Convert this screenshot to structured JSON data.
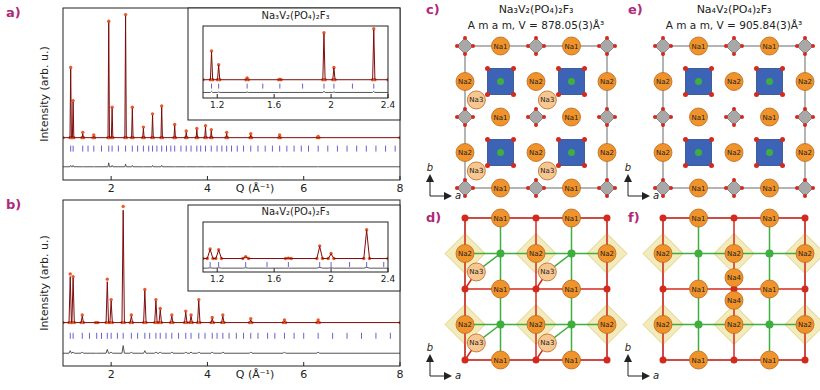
{
  "chart_data": [
    {
      "type": "line",
      "title": "a)",
      "x_label": "Q (Å⁻¹)",
      "y_label": "Intensity (arb. u.)",
      "xlim": [
        1,
        8
      ],
      "ylim": [
        -30,
        100
      ],
      "xticks": [
        2,
        4,
        6,
        8
      ],
      "tick_labels": "x",
      "x": [
        1.0,
        1.145,
        1.16,
        1.175,
        1.195,
        1.21,
        1.225,
        1.395,
        1.41,
        1.425,
        1.625,
        1.64,
        1.655,
        1.935,
        1.95,
        1.965,
        2.005,
        2.02,
        2.035,
        2.285,
        2.3,
        2.315,
        2.425,
        2.44,
        2.455,
        2.655,
        2.67,
        2.685,
        2.845,
        2.86,
        2.875,
        3.035,
        3.05,
        3.065,
        3.305,
        3.32,
        3.335,
        3.545,
        3.56,
        3.575,
        3.765,
        3.78,
        3.795,
        3.945,
        3.96,
        3.975,
        4.065,
        4.08,
        4.095,
        4.385,
        4.4,
        4.415,
        4.885,
        4.9,
        4.915,
        5.485,
        5.5,
        5.515,
        6.285,
        6.3,
        6.315,
        8.0
      ],
      "series": [
        {
          "type": "scatter",
          "marker": "circle",
          "color": "#ea5b2b",
          "values": [
            2,
            2,
            55,
            2,
            2,
            30,
            2,
            2,
            6,
            2,
            2,
            4,
            2,
            2,
            90,
            2,
            2,
            25,
            2,
            2,
            95,
            2,
            2,
            25,
            2,
            2,
            10,
            2,
            2,
            20,
            2,
            2,
            26,
            2,
            2,
            12,
            2,
            2,
            7,
            2,
            2,
            9,
            2,
            2,
            11,
            2,
            2,
            8,
            2,
            2,
            6,
            2,
            2,
            5,
            2,
            2,
            4,
            2,
            2,
            3,
            2,
            2
          ]
        },
        {
          "type": "line",
          "color": "#7d0b0b",
          "values": [
            2,
            2,
            54,
            2,
            2,
            29,
            2,
            2,
            5,
            2,
            2,
            3,
            2,
            2,
            89,
            2,
            2,
            24,
            2,
            2,
            94,
            2,
            2,
            24,
            2,
            2,
            9,
            2,
            2,
            19,
            2,
            2,
            25,
            2,
            2,
            11,
            2,
            2,
            6,
            2,
            2,
            8,
            2,
            2,
            10,
            2,
            2,
            7,
            2,
            2,
            5,
            2,
            2,
            4,
            2,
            2,
            3,
            2,
            2,
            2,
            2,
            2
          ]
        },
        {
          "type": "line",
          "color": "#555555",
          "values": [
            -20,
            -20,
            -19,
            -20,
            -20,
            -19,
            -20,
            -20,
            -20,
            -20,
            -20,
            -20,
            -20,
            -20,
            -17,
            -20,
            -20,
            -19,
            -20,
            -20,
            -18,
            -20,
            -20,
            -19,
            -20,
            -20,
            -20,
            -20,
            -20,
            -19,
            -20,
            -20,
            -19,
            -20,
            -20,
            -20,
            -20,
            -20,
            -20,
            -20,
            -20,
            -20,
            -20,
            -20,
            -20,
            -20,
            -20,
            -20,
            -20,
            -20,
            -20,
            -20,
            -20,
            -20,
            -20,
            -20,
            -20,
            -20,
            -20,
            -20,
            -20,
            -20
          ]
        },
        {
          "type": "ticks",
          "color": "#6a60cc",
          "x": [
            1.16,
            1.21,
            1.41,
            1.52,
            1.64,
            1.8,
            1.95,
            2.02,
            2.15,
            2.3,
            2.44,
            2.55,
            2.67,
            2.78,
            2.86,
            2.95,
            3.05,
            3.15,
            3.24,
            3.32,
            3.45,
            3.56,
            3.66,
            3.78,
            3.86,
            3.96,
            4.08,
            4.2,
            4.3,
            4.4,
            4.5,
            4.62,
            4.75,
            4.9,
            5.05,
            5.2,
            5.35,
            5.5,
            5.65,
            5.8,
            5.95,
            6.1,
            6.3,
            6.5,
            6.7,
            6.9,
            7.1,
            7.3,
            7.5,
            7.7,
            7.9
          ]
        }
      ]
    },
    {
      "type": "line",
      "title": "Na₃V₂(PO₄)₂F₃",
      "xlim": [
        1.1,
        2.4
      ],
      "ylim": [
        -30,
        100
      ],
      "xticks": [
        1.2,
        1.6,
        2,
        2.4
      ],
      "tick_labels": "x",
      "x": [
        1.1,
        1.152,
        1.16,
        1.168,
        1.202,
        1.21,
        1.218,
        1.402,
        1.41,
        1.418,
        1.632,
        1.64,
        1.648,
        1.942,
        1.95,
        1.958,
        2.012,
        2.02,
        2.028,
        2.292,
        2.3,
        2.308,
        2.4
      ],
      "series": [
        {
          "type": "scatter",
          "marker": "circle",
          "color": "#ea5b2b",
          "values": [
            3,
            3,
            55,
            3,
            3,
            30,
            3,
            3,
            6,
            3,
            3,
            4,
            3,
            3,
            88,
            3,
            3,
            25,
            3,
            3,
            95,
            3,
            3
          ]
        },
        {
          "type": "line",
          "color": "#7d0b0b",
          "values": [
            3,
            3,
            53,
            3,
            3,
            29,
            3,
            3,
            5,
            3,
            3,
            3,
            3,
            3,
            86,
            3,
            3,
            24,
            3,
            3,
            93,
            3,
            3
          ]
        },
        {
          "type": "line",
          "color": "#555555",
          "values": [
            -20,
            -20,
            -18,
            -20,
            -20,
            -19,
            -20,
            -20,
            -19,
            -20,
            -20,
            -20,
            -20,
            -20,
            -18,
            -20,
            -20,
            -19,
            -20,
            -20,
            -18,
            -20,
            -20
          ]
        },
        {
          "type": "ticks",
          "color": "#6a60cc",
          "x": [
            1.16,
            1.21,
            1.41,
            1.52,
            1.64,
            1.8,
            1.95,
            2.02,
            2.15,
            2.3
          ]
        }
      ]
    },
    {
      "type": "line",
      "title": "b)",
      "x_label": "Q (Å⁻¹)",
      "y_label": "Intensity (arb. u.)",
      "xlim": [
        1,
        8
      ],
      "ylim": [
        -30,
        100
      ],
      "xticks": [
        2,
        4,
        6,
        8
      ],
      "tick_labels": "x",
      "x": [
        1.0,
        1.125,
        1.15,
        1.175,
        1.185,
        1.21,
        1.235,
        1.375,
        1.4,
        1.425,
        1.675,
        1.7,
        1.725,
        1.895,
        1.92,
        1.945,
        1.975,
        2.0,
        2.025,
        2.225,
        2.25,
        2.275,
        2.395,
        2.42,
        2.445,
        2.675,
        2.7,
        2.725,
        2.905,
        2.93,
        2.955,
        2.995,
        3.02,
        3.045,
        3.235,
        3.26,
        3.285,
        3.525,
        3.55,
        3.575,
        3.635,
        3.66,
        3.685,
        3.795,
        3.82,
        3.845,
        4.075,
        4.1,
        4.125,
        4.295,
        4.32,
        4.345,
        4.875,
        4.9,
        4.925,
        5.575,
        5.6,
        5.625,
        6.275,
        6.3,
        6.325,
        8.0
      ],
      "series": [
        {
          "type": "scatter",
          "marker": "circle",
          "color": "#ea5b2b",
          "values": [
            4,
            4,
            42,
            4,
            4,
            40,
            4,
            4,
            10,
            4,
            4,
            4,
            4,
            4,
            38,
            4,
            4,
            22,
            4,
            4,
            95,
            4,
            4,
            10,
            4,
            4,
            30,
            4,
            4,
            22,
            4,
            4,
            15,
            4,
            4,
            10,
            4,
            4,
            13,
            4,
            4,
            10,
            4,
            4,
            22,
            4,
            4,
            8,
            4,
            4,
            10,
            4,
            4,
            7,
            4,
            4,
            6,
            4,
            4,
            6,
            4,
            4
          ]
        },
        {
          "type": "line",
          "color": "#7d0b0b",
          "values": [
            4,
            4,
            40,
            4,
            4,
            39,
            4,
            4,
            9,
            4,
            4,
            4,
            4,
            4,
            36,
            4,
            4,
            21,
            4,
            4,
            92,
            4,
            4,
            9,
            4,
            4,
            29,
            4,
            4,
            21,
            4,
            4,
            14,
            4,
            4,
            9,
            4,
            4,
            12,
            4,
            4,
            9,
            4,
            4,
            21,
            4,
            4,
            7,
            4,
            4,
            9,
            4,
            4,
            6,
            4,
            4,
            5,
            4,
            4,
            5,
            4,
            4
          ]
        },
        {
          "type": "line",
          "color": "#555555",
          "values": [
            -20,
            -20,
            -18,
            -20,
            -20,
            -19,
            -20,
            -20,
            -19,
            -20,
            -20,
            -20,
            -20,
            -20,
            -17,
            -20,
            -20,
            -19,
            -20,
            -20,
            -14,
            -20,
            -20,
            -19,
            -20,
            -20,
            -18,
            -20,
            -20,
            -19,
            -20,
            -20,
            -19,
            -20,
            -20,
            -19,
            -20,
            -20,
            -19,
            -20,
            -20,
            -19,
            -20,
            -20,
            -19,
            -20,
            -20,
            -19,
            -20,
            -20,
            -19,
            -20,
            -20,
            -19,
            -20,
            -20,
            -19,
            -20,
            -20,
            -19,
            -20,
            -20
          ]
        },
        {
          "type": "ticks",
          "color": "#6a60cc",
          "x": [
            1.15,
            1.21,
            1.4,
            1.55,
            1.7,
            1.8,
            1.92,
            2.0,
            2.13,
            2.25,
            2.42,
            2.55,
            2.7,
            2.8,
            2.93,
            3.02,
            3.14,
            3.26,
            3.4,
            3.55,
            3.66,
            3.82,
            3.95,
            4.1,
            4.2,
            4.32,
            4.45,
            4.6,
            4.75,
            4.9,
            5.05,
            5.25,
            5.4,
            5.6,
            5.8,
            6.0,
            6.3,
            6.6,
            6.9,
            7.2,
            7.5,
            7.8
          ]
        }
      ]
    },
    {
      "type": "line",
      "title": "Na₄V₂(PO₄)₂F₃",
      "xlim": [
        1.1,
        2.4
      ],
      "ylim": [
        -30,
        100
      ],
      "xticks": [
        1.2,
        1.6,
        2,
        2.4
      ],
      "tick_labels": "x",
      "x": [
        1.1,
        1.13,
        1.15,
        1.17,
        1.19,
        1.21,
        1.23,
        1.38,
        1.4,
        1.42,
        1.68,
        1.7,
        1.72,
        1.9,
        1.92,
        1.94,
        1.98,
        2.0,
        2.02,
        2.23,
        2.25,
        2.27,
        2.4
      ],
      "series": [
        {
          "type": "scatter",
          "marker": "circle",
          "color": "#ea5b2b",
          "values": [
            5,
            5,
            30,
            5,
            5,
            28,
            5,
            5,
            10,
            5,
            5,
            6,
            5,
            5,
            38,
            5,
            5,
            18,
            5,
            5,
            80,
            5,
            5
          ]
        },
        {
          "type": "line",
          "color": "#7d0b0b",
          "values": [
            5,
            5,
            29,
            5,
            5,
            27,
            5,
            5,
            9,
            5,
            5,
            6,
            5,
            5,
            36,
            5,
            5,
            17,
            5,
            5,
            78,
            5,
            5
          ]
        },
        {
          "type": "line",
          "color": "#555555",
          "values": [
            -20,
            -20,
            -19,
            -20,
            -20,
            -19,
            -20,
            -20,
            -19,
            -20,
            -20,
            -20,
            -20,
            -20,
            -18,
            -20,
            -20,
            -19,
            -20,
            -20,
            -18,
            -20,
            -20
          ]
        },
        {
          "type": "ticks",
          "color": "#6a60cc",
          "x": [
            1.15,
            1.21,
            1.4,
            1.55,
            1.7,
            1.92,
            2.0,
            2.13,
            2.25,
            2.37
          ]
        }
      ]
    }
  ],
  "structures": [
    {
      "label": "c)",
      "formula": "Na₃V₂(PO₄)₂F₃",
      "cell": "A m a m, V = 878.05(3)Å³",
      "sites": [
        "Na1",
        "Na2",
        "Na3"
      ],
      "axes": [
        "a",
        "b"
      ]
    },
    {
      "label": "d)",
      "sites": [
        "Na1",
        "Na2",
        "Na3"
      ],
      "axes": [
        "a",
        "b"
      ]
    },
    {
      "label": "e)",
      "formula": "Na₄V₂(PO₄)₂F₃",
      "cell": "A m a m, V = 905.84(3)Å³",
      "sites": [
        "Na1",
        "Na2"
      ],
      "axes": [
        "a",
        "b"
      ]
    },
    {
      "label": "f)",
      "sites": [
        "Na1",
        "Na2",
        "Na4"
      ],
      "axes": [
        "a",
        "b"
      ]
    }
  ]
}
